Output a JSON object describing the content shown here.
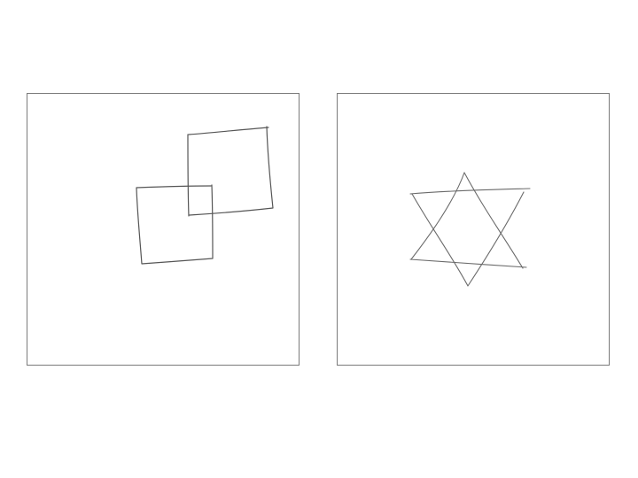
{
  "panels": [
    {
      "shapes": [
        "square",
        "square"
      ],
      "stroke_color": "#555555"
    },
    {
      "shapes": [
        "triangle",
        "triangle"
      ],
      "stroke_color": "#6a6a6a"
    }
  ],
  "colors": {
    "background": "#ffffff",
    "panel_border": "#7a7a7a"
  }
}
